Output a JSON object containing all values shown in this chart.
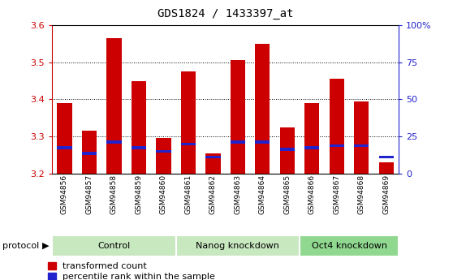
{
  "title": "GDS1824 / 1433397_at",
  "samples": [
    "GSM94856",
    "GSM94857",
    "GSM94858",
    "GSM94859",
    "GSM94860",
    "GSM94861",
    "GSM94862",
    "GSM94863",
    "GSM94864",
    "GSM94865",
    "GSM94866",
    "GSM94867",
    "GSM94868",
    "GSM94869"
  ],
  "red_values": [
    3.39,
    3.315,
    3.565,
    3.45,
    3.295,
    3.475,
    3.255,
    3.505,
    3.55,
    3.325,
    3.39,
    3.455,
    3.395,
    3.23
  ],
  "blue_values": [
    3.27,
    3.255,
    3.285,
    3.27,
    3.26,
    3.28,
    3.245,
    3.285,
    3.285,
    3.265,
    3.27,
    3.275,
    3.275,
    3.245
  ],
  "ylim": [
    3.2,
    3.6
  ],
  "yticks_left": [
    3.2,
    3.3,
    3.4,
    3.5,
    3.6
  ],
  "yticks_right": [
    0,
    25,
    50,
    75,
    100
  ],
  "groups": [
    {
      "label": "Control",
      "start": 0,
      "end": 5
    },
    {
      "label": "Nanog knockdown",
      "start": 5,
      "end": 10
    },
    {
      "label": "Oct4 knockdown",
      "start": 10,
      "end": 14
    }
  ],
  "bar_width": 0.6,
  "red_color": "#cc0000",
  "blue_color": "#2222cc",
  "left_axis_color": "#cc0000",
  "right_axis_color": "#2222cc",
  "legend_items": [
    "transformed count",
    "percentile rank within the sample"
  ],
  "protocol_label": "protocol",
  "group_colors": [
    "#c8e8c8",
    "#c8e8c8",
    "#90d890"
  ],
  "plot_facecolor": "#ffffff",
  "sample_bg": "#e0e0e0"
}
